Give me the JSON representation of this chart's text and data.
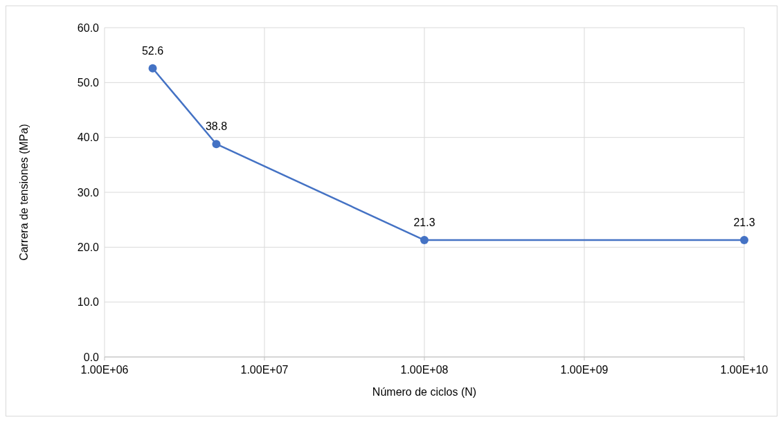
{
  "chart_data": {
    "type": "line",
    "xlabel": "Número de ciclos (N)",
    "ylabel": "Carrera de tensiones (MPa)",
    "x": [
      2000000,
      5000000,
      100000000,
      10000000000
    ],
    "series": [
      {
        "color": "#4472c4",
        "values": [
          52.6,
          38.8,
          21.3,
          21.3
        ]
      }
    ],
    "log": "x",
    "xlim": [
      1000000,
      10000000000
    ],
    "xticks": [
      {
        "value": 1000000,
        "label": "1.00E+06"
      },
      {
        "value": 10000000,
        "label": "1.00E+07"
      },
      {
        "value": 100000000,
        "label": "1.00E+08"
      },
      {
        "value": 1000000000,
        "label": "1.00E+09"
      },
      {
        "value": 10000000000,
        "label": "1.00E+10"
      }
    ],
    "ylim": [
      0,
      60
    ],
    "yticks": [
      {
        "value": 0,
        "label": "0.0"
      },
      {
        "value": 10,
        "label": "10.0"
      },
      {
        "value": 20,
        "label": "20.0"
      },
      {
        "value": 30,
        "label": "30.0"
      },
      {
        "value": 40,
        "label": "40.0"
      },
      {
        "value": 50,
        "label": "50.0"
      },
      {
        "value": 60,
        "label": "60.0"
      }
    ],
    "grid": true,
    "marker": "circle",
    "line_style": "solid",
    "data_labels": true
  }
}
